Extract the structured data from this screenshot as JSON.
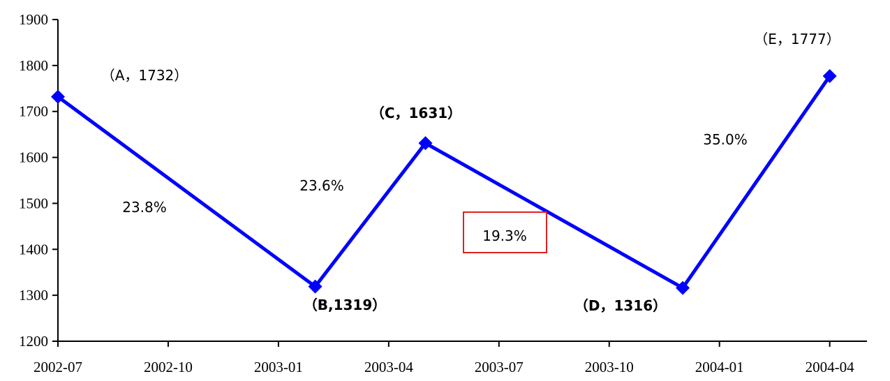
{
  "chart_data": {
    "type": "line",
    "x_ticks": [
      "2002-07",
      "2002-10",
      "2003-01",
      "2003-04",
      "2003-07",
      "2003-10",
      "2004-01",
      "2004-04"
    ],
    "ylim": [
      1200,
      1900
    ],
    "y_ticks": [
      1200,
      1300,
      1400,
      1500,
      1600,
      1700,
      1800,
      1900
    ],
    "grid": false,
    "series": [
      {
        "color": "#0000ff",
        "points": [
          {
            "x": "2002-07",
            "y": 1732
          },
          {
            "x": "2003-02",
            "y": 1319
          },
          {
            "x": "2003-05",
            "y": 1631
          },
          {
            "x": "2003-12",
            "y": 1316
          },
          {
            "x": "2004-04",
            "y": 1777
          }
        ]
      }
    ],
    "point_labels": [
      {
        "text": "（A，1732）",
        "bold": false
      },
      {
        "text": "（B,1319）",
        "bold": true
      },
      {
        "text": "（C，1631）",
        "bold": true
      },
      {
        "text": "（D，1316）",
        "bold": true
      },
      {
        "text": "（E，1777）",
        "bold": false
      }
    ],
    "segment_labels": [
      "23.8%",
      "23.6%",
      "19.3%",
      "35.0%"
    ],
    "highlight_color": "#e02020"
  }
}
